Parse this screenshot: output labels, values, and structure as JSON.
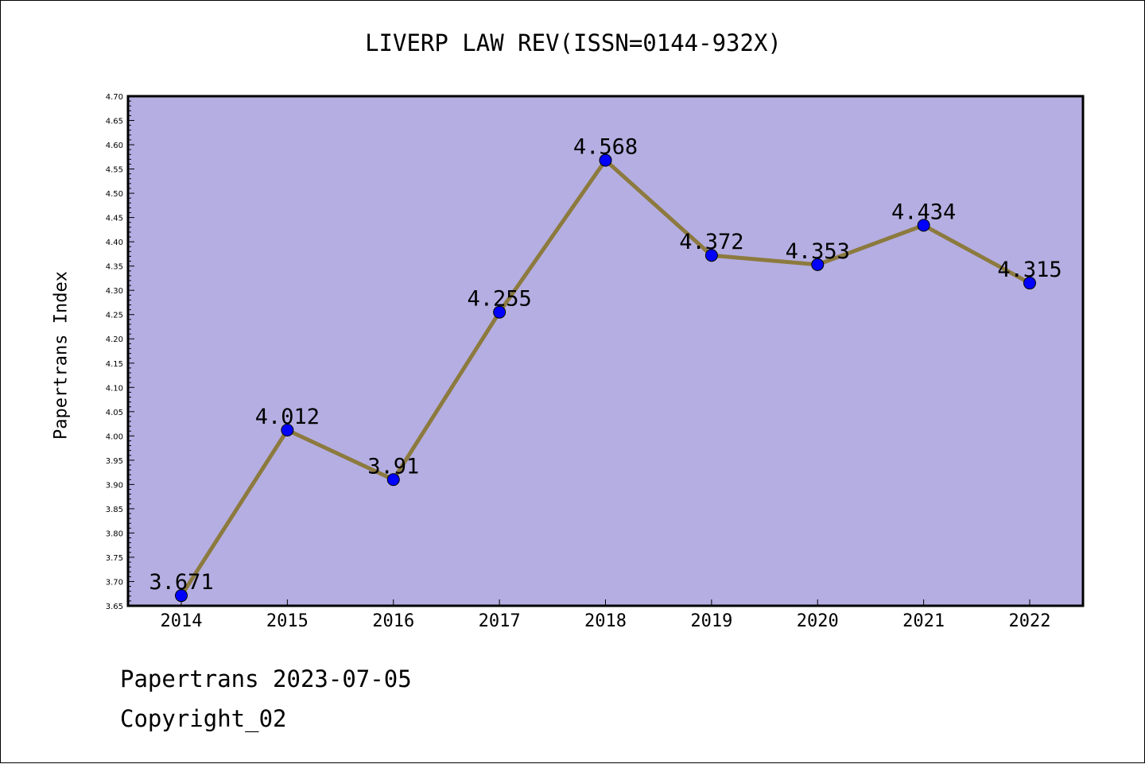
{
  "title": "LIVERP LAW REV(ISSN=0144-932X)",
  "footer": {
    "date_line": "Papertrans 2023-07-05",
    "copyright_line": "Copyright_02"
  },
  "colors": {
    "plot_background": "#b5aee2",
    "line": "#8c7a3e",
    "marker": "#0000ff"
  },
  "chart_data": {
    "type": "line",
    "title": "LIVERP LAW REV(ISSN=0144-932X)",
    "xlabel": "",
    "ylabel": "Papertrans Index",
    "categories": [
      "2014",
      "2015",
      "2016",
      "2017",
      "2018",
      "2019",
      "2020",
      "2021",
      "2022"
    ],
    "series": [
      {
        "values": [
          3.671,
          4.012,
          3.91,
          4.255,
          4.568,
          4.372,
          4.353,
          4.434,
          4.315
        ],
        "labels": [
          "3.671",
          "4.012",
          "3.91",
          "4.255",
          "4.568",
          "4.372",
          "4.353",
          "4.434",
          "4.315"
        ]
      }
    ],
    "ylim": [
      3.65,
      4.7
    ],
    "ytick_step": 0.05,
    "grid": false,
    "legend": "none"
  }
}
